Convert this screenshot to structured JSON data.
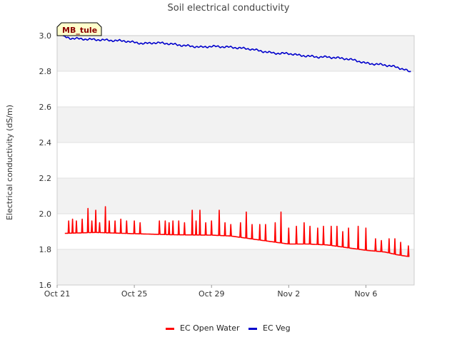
{
  "chart_data": {
    "type": "line",
    "title": "Soil electrical conductivity",
    "ylabel": "Electrical conductivity (dS/m)",
    "xlabel": "",
    "site_label": "MB_tule",
    "ylim": [
      1.6,
      3.0
    ],
    "yticks": [
      "1.6",
      "1.8",
      "2.0",
      "2.2",
      "2.4",
      "2.6",
      "2.8",
      "3.0"
    ],
    "xlim_days": [
      0,
      18.5
    ],
    "xticks": [
      {
        "label": "Oct 21",
        "day": 0
      },
      {
        "label": "Oct 25",
        "day": 4
      },
      {
        "label": "Oct 29",
        "day": 8
      },
      {
        "label": "Nov 2",
        "day": 12
      },
      {
        "label": "Nov 6",
        "day": 16
      }
    ],
    "grid_bands": true,
    "legend_position": "bottom",
    "series": [
      {
        "name": "EC Open Water",
        "color": "#ff0000",
        "baseline": [
          [
            0.4,
            1.89
          ],
          [
            2,
            1.895
          ],
          [
            4,
            1.888
          ],
          [
            6,
            1.882
          ],
          [
            8,
            1.88
          ],
          [
            9,
            1.875
          ],
          [
            10,
            1.86
          ],
          [
            11,
            1.845
          ],
          [
            12,
            1.83
          ],
          [
            13,
            1.83
          ],
          [
            14,
            1.825
          ],
          [
            15,
            1.81
          ],
          [
            16,
            1.795
          ],
          [
            17,
            1.785
          ],
          [
            17.6,
            1.77
          ],
          [
            18.2,
            1.76
          ]
        ],
        "spikes": [
          [
            0.6,
            1.96
          ],
          [
            0.8,
            1.97
          ],
          [
            1.0,
            1.96
          ],
          [
            1.3,
            1.97
          ],
          [
            1.6,
            2.03
          ],
          [
            1.8,
            1.96
          ],
          [
            2.0,
            2.02
          ],
          [
            2.2,
            1.95
          ],
          [
            2.5,
            2.04
          ],
          [
            2.7,
            1.96
          ],
          [
            3.0,
            1.96
          ],
          [
            3.3,
            1.97
          ],
          [
            3.6,
            1.96
          ],
          [
            4.0,
            1.96
          ],
          [
            4.3,
            1.95
          ],
          [
            5.3,
            1.96
          ],
          [
            5.6,
            1.96
          ],
          [
            5.8,
            1.95
          ],
          [
            6.0,
            1.96
          ],
          [
            6.3,
            1.96
          ],
          [
            6.6,
            1.95
          ],
          [
            7.0,
            2.02
          ],
          [
            7.2,
            1.96
          ],
          [
            7.4,
            2.02
          ],
          [
            7.7,
            1.95
          ],
          [
            8.0,
            1.96
          ],
          [
            8.4,
            2.02
          ],
          [
            8.7,
            1.95
          ],
          [
            9.0,
            1.94
          ],
          [
            9.5,
            1.95
          ],
          [
            9.8,
            2.01
          ],
          [
            10.1,
            1.94
          ],
          [
            10.5,
            1.94
          ],
          [
            10.8,
            1.94
          ],
          [
            11.3,
            1.95
          ],
          [
            11.6,
            2.01
          ],
          [
            12.0,
            1.92
          ],
          [
            12.4,
            1.93
          ],
          [
            12.8,
            1.95
          ],
          [
            13.1,
            1.93
          ],
          [
            13.5,
            1.92
          ],
          [
            13.8,
            1.93
          ],
          [
            14.2,
            1.93
          ],
          [
            14.5,
            1.93
          ],
          [
            14.8,
            1.9
          ],
          [
            15.1,
            1.92
          ],
          [
            15.6,
            1.93
          ],
          [
            16.0,
            1.92
          ],
          [
            16.5,
            1.86
          ],
          [
            16.8,
            1.85
          ],
          [
            17.2,
            1.86
          ],
          [
            17.5,
            1.86
          ],
          [
            17.8,
            1.84
          ],
          [
            18.2,
            1.82
          ]
        ]
      },
      {
        "name": "EC Veg",
        "color": "#0000cc",
        "baseline": [
          [
            0.3,
            2.995
          ],
          [
            0.7,
            2.985
          ],
          [
            1.5,
            2.98
          ],
          [
            2.5,
            2.975
          ],
          [
            3.0,
            2.972
          ],
          [
            3.5,
            2.97
          ],
          [
            4.0,
            2.962
          ],
          [
            4.5,
            2.955
          ],
          [
            5.0,
            2.96
          ],
          [
            5.5,
            2.958
          ],
          [
            6.0,
            2.952
          ],
          [
            6.5,
            2.945
          ],
          [
            7.0,
            2.94
          ],
          [
            7.5,
            2.935
          ],
          [
            8.0,
            2.94
          ],
          [
            8.5,
            2.938
          ],
          [
            9.0,
            2.935
          ],
          [
            9.5,
            2.93
          ],
          [
            10.0,
            2.925
          ],
          [
            10.5,
            2.915
          ],
          [
            11.0,
            2.905
          ],
          [
            11.5,
            2.9
          ],
          [
            12.0,
            2.9
          ],
          [
            12.5,
            2.89
          ],
          [
            13.0,
            2.885
          ],
          [
            13.5,
            2.88
          ],
          [
            14.0,
            2.88
          ],
          [
            14.5,
            2.875
          ],
          [
            15.0,
            2.87
          ],
          [
            15.5,
            2.86
          ],
          [
            16.0,
            2.845
          ],
          [
            16.5,
            2.84
          ],
          [
            17.0,
            2.835
          ],
          [
            17.5,
            2.825
          ],
          [
            18.0,
            2.81
          ],
          [
            18.3,
            2.795
          ]
        ]
      }
    ]
  }
}
